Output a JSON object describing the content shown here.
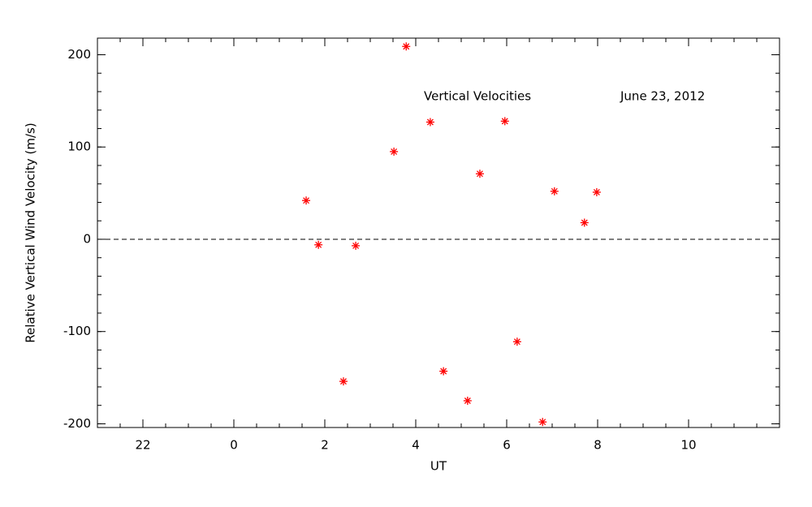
{
  "chart_data": {
    "type": "scatter",
    "annotations": [
      "Vertical Velocities",
      "June 23, 2012"
    ],
    "x_label": "UT",
    "y_label": "Relative Vertical Wind Velocity (m/s)",
    "color": "#ff0000",
    "marker": "asterisk",
    "reference_line": 0,
    "xlim": [
      -3,
      12
    ],
    "xticks": [
      {
        "value": -2,
        "label": "22"
      },
      0,
      2,
      4,
      6,
      8,
      10
    ],
    "ylim": [
      -204,
      218
    ],
    "yticks": [
      -200,
      -100,
      0,
      100,
      200
    ],
    "x": [
      1.59,
      1.86,
      2.41,
      2.68,
      3.52,
      3.79,
      4.32,
      4.61,
      5.14,
      5.41,
      5.96,
      6.23,
      6.79,
      7.05,
      7.71,
      7.98
    ],
    "y": [
      42,
      -6,
      -154,
      -7,
      95,
      209,
      127,
      -143,
      -175,
      71,
      128,
      -111,
      -198,
      52,
      18,
      51
    ]
  }
}
